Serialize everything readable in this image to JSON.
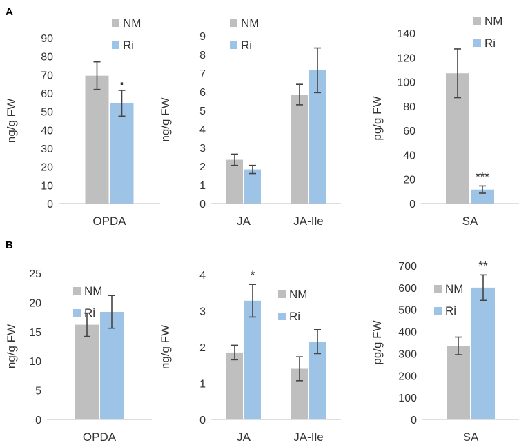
{
  "panels": [
    {
      "label": "A"
    },
    {
      "label": "B"
    }
  ],
  "chart_data": [
    {
      "panel": "A",
      "type": "bar",
      "title": "",
      "xlabel": "",
      "ylabel": "ng/g FW",
      "categories": [
        "OPDA"
      ],
      "series": [
        {
          "name": "NM",
          "color": "#bfbfbf",
          "values": [
            69.5
          ],
          "errors": [
            7.5
          ]
        },
        {
          "name": "Ri",
          "color": "#9dc3e6",
          "values": [
            54.5
          ],
          "errors": [
            7
          ]
        }
      ],
      "ylim": [
        0,
        90
      ],
      "yticks": [
        0,
        10,
        20,
        30,
        40,
        50,
        60,
        70,
        80,
        90
      ],
      "annotations": [
        {
          "category": 0,
          "series": 1,
          "text": "."
        }
      ],
      "legend": "top-right",
      "grid": false
    },
    {
      "panel": "A",
      "type": "bar",
      "title": "",
      "xlabel": "",
      "ylabel": "ng/g FW",
      "categories": [
        "JA",
        "JA-Ile"
      ],
      "series": [
        {
          "name": "NM",
          "color": "#bfbfbf",
          "values": [
            2.35,
            5.85
          ],
          "errors": [
            0.3,
            0.55
          ]
        },
        {
          "name": "Ri",
          "color": "#9dc3e6",
          "values": [
            1.83,
            7.15
          ],
          "errors": [
            0.22,
            1.2
          ]
        }
      ],
      "ylim": [
        0,
        9
      ],
      "yticks": [
        0,
        1,
        2,
        3,
        4,
        5,
        6,
        7,
        8,
        9
      ],
      "annotations": [],
      "legend": "top-left",
      "grid": false
    },
    {
      "panel": "A",
      "type": "bar",
      "title": "",
      "xlabel": "",
      "ylabel": "pg/g FW",
      "categories": [
        "SA"
      ],
      "series": [
        {
          "name": "NM",
          "color": "#bfbfbf",
          "values": [
            107
          ],
          "errors": [
            20
          ]
        },
        {
          "name": "Ri",
          "color": "#9dc3e6",
          "values": [
            11.5
          ],
          "errors": [
            3
          ]
        }
      ],
      "ylim": [
        0,
        140
      ],
      "yticks": [
        0,
        20,
        40,
        60,
        80,
        100,
        120,
        140
      ],
      "annotations": [
        {
          "category": 0,
          "series": 1,
          "text": "***"
        }
      ],
      "legend": "top-right",
      "grid": false
    },
    {
      "panel": "B",
      "type": "bar",
      "title": "",
      "xlabel": "",
      "ylabel": "ng/g FW",
      "categories": [
        "OPDA"
      ],
      "series": [
        {
          "name": "NM",
          "color": "#bfbfbf",
          "values": [
            16.2
          ],
          "errors": [
            2
          ]
        },
        {
          "name": "Ri",
          "color": "#9dc3e6",
          "values": [
            18.4
          ],
          "errors": [
            2.8
          ]
        }
      ],
      "ylim": [
        0,
        25
      ],
      "yticks": [
        0,
        5,
        10,
        15,
        20,
        25
      ],
      "annotations": [],
      "legend": "top-left",
      "grid": false
    },
    {
      "panel": "B",
      "type": "bar",
      "title": "",
      "xlabel": "",
      "ylabel": "ng/g FW",
      "categories": [
        "JA",
        "JA-Ile"
      ],
      "series": [
        {
          "name": "NM",
          "color": "#bfbfbf",
          "values": [
            1.85,
            1.4
          ],
          "errors": [
            0.2,
            0.33
          ]
        },
        {
          "name": "Ri",
          "color": "#9dc3e6",
          "values": [
            3.28,
            2.15
          ],
          "errors": [
            0.45,
            0.33
          ]
        }
      ],
      "ylim": [
        0,
        4
      ],
      "yticks": [
        0,
        1,
        2,
        3,
        4
      ],
      "annotations": [
        {
          "category": 0,
          "series": 1,
          "text": "*"
        }
      ],
      "legend": "top-right",
      "grid": false
    },
    {
      "panel": "B",
      "type": "bar",
      "title": "",
      "xlabel": "",
      "ylabel": "pg/g FW",
      "categories": [
        "SA"
      ],
      "series": [
        {
          "name": "NM",
          "color": "#bfbfbf",
          "values": [
            335
          ],
          "errors": [
            40
          ]
        },
        {
          "name": "Ri",
          "color": "#9dc3e6",
          "values": [
            600
          ],
          "errors": [
            58
          ]
        }
      ],
      "ylim": [
        0,
        700
      ],
      "yticks": [
        0,
        100,
        200,
        300,
        400,
        500,
        600,
        700
      ],
      "annotations": [
        {
          "category": 0,
          "series": 1,
          "text": "**"
        }
      ],
      "legend": "top-left",
      "grid": false
    }
  ]
}
